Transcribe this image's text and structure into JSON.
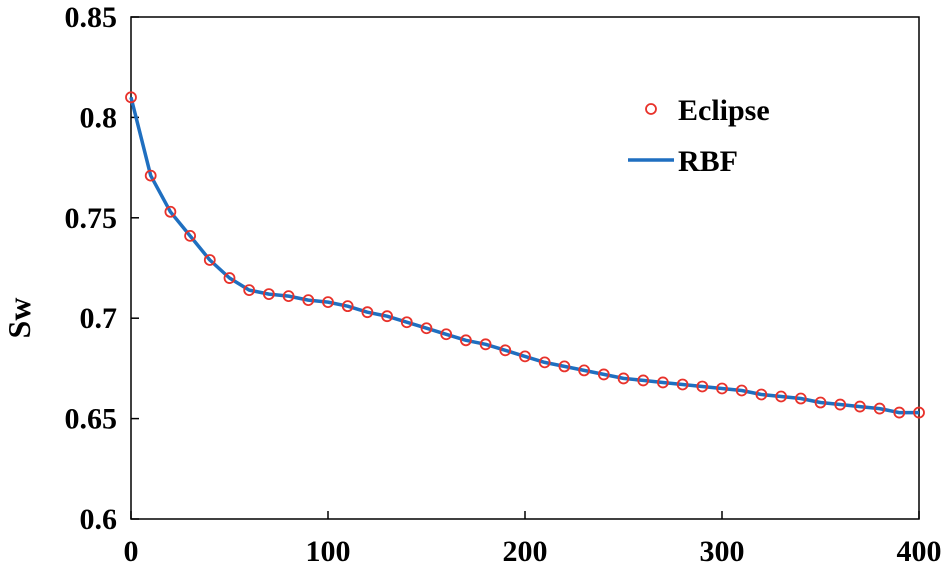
{
  "chart_data": {
    "type": "line",
    "title": "",
    "xlabel": "",
    "ylabel": "Sw",
    "xlim": [
      0,
      400
    ],
    "ylim": [
      0.6,
      0.85
    ],
    "x_ticks": [
      "0",
      "100",
      "200",
      "300",
      "400"
    ],
    "y_ticks": [
      "0.6",
      "0.65",
      "0.7",
      "0.75",
      "0.8",
      "0.85"
    ],
    "grid": false,
    "legend_position": "top-right",
    "legend": [
      "Eclipse",
      "RBF"
    ],
    "colors": {
      "eclipse": "#e8322b",
      "rbf": "#1f6fc0"
    },
    "series": [
      {
        "name": "Eclipse",
        "style": "markers",
        "marker": "open-circle",
        "x": [
          0,
          10,
          20,
          30,
          40,
          50,
          60,
          70,
          80,
          90,
          100,
          110,
          120,
          130,
          140,
          150,
          160,
          170,
          180,
          190,
          200,
          210,
          220,
          230,
          240,
          250,
          260,
          270,
          280,
          290,
          300,
          310,
          320,
          330,
          340,
          350,
          360,
          370,
          380,
          390,
          400
        ],
        "y": [
          0.81,
          0.771,
          0.753,
          0.741,
          0.729,
          0.72,
          0.714,
          0.712,
          0.711,
          0.709,
          0.708,
          0.706,
          0.703,
          0.701,
          0.698,
          0.695,
          0.692,
          0.689,
          0.687,
          0.684,
          0.681,
          0.678,
          0.676,
          0.674,
          0.672,
          0.67,
          0.669,
          0.668,
          0.667,
          0.666,
          0.665,
          0.664,
          0.662,
          0.661,
          0.66,
          0.658,
          0.657,
          0.656,
          0.655,
          0.653,
          0.653
        ]
      },
      {
        "name": "RBF",
        "style": "line",
        "x": [
          0,
          10,
          20,
          30,
          40,
          50,
          60,
          70,
          80,
          90,
          100,
          110,
          120,
          130,
          140,
          150,
          160,
          170,
          180,
          190,
          200,
          210,
          220,
          230,
          240,
          250,
          260,
          270,
          280,
          290,
          300,
          310,
          320,
          330,
          340,
          350,
          360,
          370,
          380,
          390,
          400
        ],
        "y": [
          0.81,
          0.771,
          0.753,
          0.741,
          0.729,
          0.72,
          0.714,
          0.712,
          0.711,
          0.709,
          0.708,
          0.706,
          0.703,
          0.701,
          0.698,
          0.695,
          0.692,
          0.689,
          0.687,
          0.684,
          0.681,
          0.678,
          0.676,
          0.674,
          0.672,
          0.67,
          0.669,
          0.668,
          0.667,
          0.666,
          0.665,
          0.664,
          0.662,
          0.661,
          0.66,
          0.658,
          0.657,
          0.656,
          0.655,
          0.653,
          0.653
        ]
      }
    ]
  }
}
